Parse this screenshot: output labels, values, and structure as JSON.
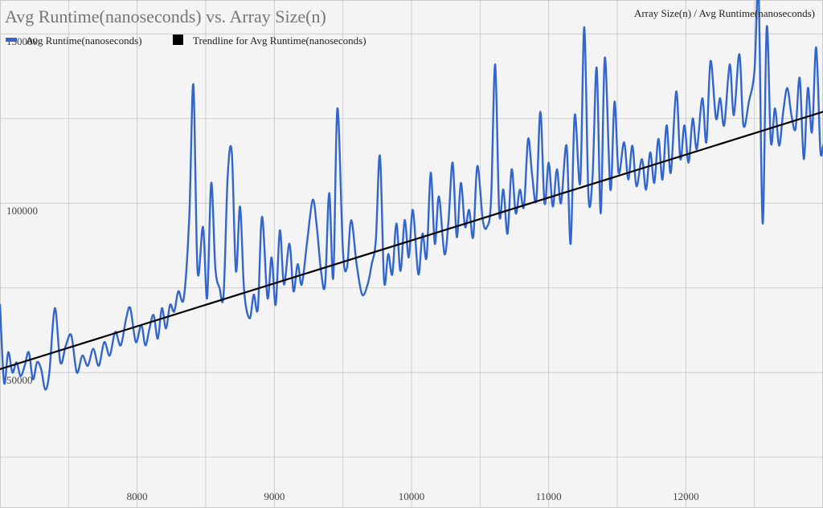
{
  "chart_data": {
    "type": "line",
    "title": "Avg Runtime(nanoseconds) vs. Array Size(n)",
    "axis_title": "Array Size(n) / Avg Runtime(nanoseconds)",
    "xlabel": "Array Size(n)",
    "ylabel": "Avg Runtime(nanoseconds)",
    "xlim": [
      7000,
      13000
    ],
    "ylim": [
      10000,
      160000
    ],
    "x_ticks": [
      8000,
      9000,
      10000,
      11000,
      12000
    ],
    "y_ticks": [
      50000,
      100000,
      150000
    ],
    "x_tick_labels": [
      "8000",
      "9000",
      "10000",
      "11000",
      "12000"
    ],
    "y_tick_labels": [
      "50000",
      "100000",
      "150000"
    ],
    "grid": true,
    "legend_position": "top-left",
    "colors": {
      "series": "#3366cc",
      "trendline": "#000000",
      "grid": "#cccccc",
      "background": "#f4f4f4"
    },
    "series": [
      {
        "name": "Avg Runtime(nanoseconds)",
        "color": "#3366cc",
        "points": [
          [
            7000,
            70000
          ],
          [
            7030,
            47000
          ],
          [
            7060,
            56000
          ],
          [
            7090,
            50000
          ],
          [
            7120,
            53000
          ],
          [
            7150,
            49000
          ],
          [
            7180,
            52000
          ],
          [
            7210,
            56000
          ],
          [
            7240,
            48000
          ],
          [
            7270,
            53000
          ],
          [
            7300,
            51000
          ],
          [
            7330,
            45000
          ],
          [
            7360,
            50000
          ],
          [
            7400,
            69000
          ],
          [
            7440,
            53000
          ],
          [
            7480,
            58000
          ],
          [
            7520,
            61000
          ],
          [
            7560,
            50000
          ],
          [
            7600,
            55000
          ],
          [
            7640,
            52000
          ],
          [
            7680,
            57000
          ],
          [
            7720,
            52000
          ],
          [
            7760,
            59000
          ],
          [
            7800,
            55000
          ],
          [
            7840,
            62000
          ],
          [
            7880,
            58000
          ],
          [
            7920,
            66000
          ],
          [
            7950,
            69000
          ],
          [
            7990,
            59000
          ],
          [
            8030,
            64000
          ],
          [
            8060,
            58000
          ],
          [
            8090,
            63000
          ],
          [
            8120,
            67000
          ],
          [
            8150,
            60000
          ],
          [
            8180,
            69000
          ],
          [
            8210,
            63000
          ],
          [
            8240,
            70000
          ],
          [
            8270,
            68000
          ],
          [
            8300,
            74000
          ],
          [
            8340,
            72000
          ],
          [
            8380,
            96000
          ],
          [
            8410,
            135000
          ],
          [
            8440,
            80000
          ],
          [
            8480,
            93000
          ],
          [
            8510,
            72000
          ],
          [
            8540,
            106000
          ],
          [
            8570,
            81000
          ],
          [
            8600,
            75000
          ],
          [
            8630,
            73000
          ],
          [
            8660,
            108000
          ],
          [
            8690,
            115000
          ],
          [
            8720,
            80000
          ],
          [
            8750,
            99000
          ],
          [
            8780,
            74000
          ],
          [
            8820,
            66000
          ],
          [
            8850,
            73000
          ],
          [
            8880,
            69000
          ],
          [
            8910,
            96000
          ],
          [
            8950,
            72000
          ],
          [
            8980,
            84000
          ],
          [
            9010,
            70000
          ],
          [
            9040,
            92000
          ],
          [
            9070,
            76000
          ],
          [
            9110,
            88000
          ],
          [
            9140,
            74000
          ],
          [
            9170,
            82000
          ],
          [
            9200,
            76000
          ],
          [
            9240,
            89000
          ],
          [
            9280,
            101000
          ],
          [
            9310,
            93000
          ],
          [
            9340,
            80000
          ],
          [
            9370,
            76000
          ],
          [
            9400,
            103000
          ],
          [
            9430,
            78000
          ],
          [
            9460,
            128000
          ],
          [
            9500,
            86000
          ],
          [
            9530,
            81000
          ],
          [
            9560,
            95000
          ],
          [
            9600,
            82000
          ],
          [
            9640,
            73000
          ],
          [
            9680,
            76000
          ],
          [
            9710,
            82000
          ],
          [
            9740,
            89000
          ],
          [
            9770,
            114000
          ],
          [
            9800,
            77000
          ],
          [
            9830,
            85000
          ],
          [
            9860,
            79000
          ],
          [
            9890,
            94000
          ],
          [
            9920,
            80000
          ],
          [
            9950,
            95000
          ],
          [
            9980,
            84000
          ],
          [
            10010,
            98000
          ],
          [
            10050,
            79000
          ],
          [
            10080,
            91000
          ],
          [
            10110,
            84000
          ],
          [
            10140,
            109000
          ],
          [
            10170,
            88000
          ],
          [
            10200,
            102000
          ],
          [
            10240,
            85000
          ],
          [
            10270,
            95000
          ],
          [
            10300,
            112000
          ],
          [
            10330,
            90000
          ],
          [
            10360,
            106000
          ],
          [
            10390,
            93000
          ],
          [
            10420,
            98000
          ],
          [
            10450,
            90000
          ],
          [
            10480,
            111000
          ],
          [
            10520,
            95000
          ],
          [
            10550,
            93000
          ],
          [
            10580,
            101000
          ],
          [
            10610,
            141000
          ],
          [
            10640,
            97000
          ],
          [
            10670,
            104000
          ],
          [
            10700,
            91000
          ],
          [
            10730,
            110000
          ],
          [
            10760,
            97000
          ],
          [
            10790,
            104000
          ],
          [
            10820,
            99000
          ],
          [
            10850,
            119000
          ],
          [
            10880,
            108000
          ],
          [
            10910,
            101000
          ],
          [
            10940,
            127000
          ],
          [
            10970,
            100000
          ],
          [
            11000,
            112000
          ],
          [
            11030,
            99000
          ],
          [
            11060,
            110000
          ],
          [
            11090,
            100000
          ],
          [
            11130,
            117000
          ],
          [
            11160,
            88000
          ],
          [
            11190,
            126000
          ],
          [
            11230,
            106000
          ],
          [
            11260,
            152000
          ],
          [
            11290,
            102000
          ],
          [
            11320,
            108000
          ],
          [
            11350,
            140000
          ],
          [
            11380,
            97000
          ],
          [
            11410,
            143000
          ],
          [
            11450,
            104000
          ],
          [
            11480,
            130000
          ],
          [
            11510,
            109000
          ],
          [
            11550,
            118000
          ],
          [
            11580,
            107000
          ],
          [
            11610,
            117000
          ],
          [
            11640,
            105000
          ],
          [
            11680,
            113000
          ],
          [
            11710,
            104000
          ],
          [
            11740,
            115000
          ],
          [
            11770,
            106000
          ],
          [
            11800,
            119000
          ],
          [
            11830,
            107000
          ],
          [
            11860,
            123000
          ],
          [
            11890,
            109000
          ],
          [
            11930,
            133000
          ],
          [
            11960,
            113000
          ],
          [
            11990,
            123000
          ],
          [
            12020,
            112000
          ],
          [
            12050,
            125000
          ],
          [
            12080,
            116000
          ],
          [
            12120,
            131000
          ],
          [
            12150,
            118000
          ],
          [
            12180,
            142000
          ],
          [
            12220,
            125000
          ],
          [
            12250,
            131000
          ],
          [
            12280,
            123000
          ],
          [
            12320,
            141000
          ],
          [
            12350,
            126000
          ],
          [
            12390,
            144000
          ],
          [
            12420,
            123000
          ],
          [
            12460,
            130000
          ],
          [
            12500,
            139000
          ],
          [
            12530,
            163000
          ],
          [
            12560,
            94000
          ],
          [
            12590,
            152000
          ],
          [
            12620,
            118000
          ],
          [
            12650,
            128000
          ],
          [
            12680,
            117000
          ],
          [
            12710,
            127000
          ],
          [
            12740,
            134000
          ],
          [
            12770,
            126000
          ],
          [
            12800,
            122000
          ],
          [
            12830,
            137000
          ],
          [
            12860,
            113000
          ],
          [
            12890,
            134000
          ],
          [
            12920,
            121000
          ],
          [
            12950,
            146000
          ],
          [
            12980,
            116000
          ],
          [
            13000,
            117000
          ]
        ]
      },
      {
        "name": "Trendline for Avg Runtime(nanoseconds)",
        "color": "#000000",
        "type": "trendline",
        "points": [
          [
            7000,
            51000
          ],
          [
            13000,
            127000
          ]
        ]
      }
    ]
  }
}
